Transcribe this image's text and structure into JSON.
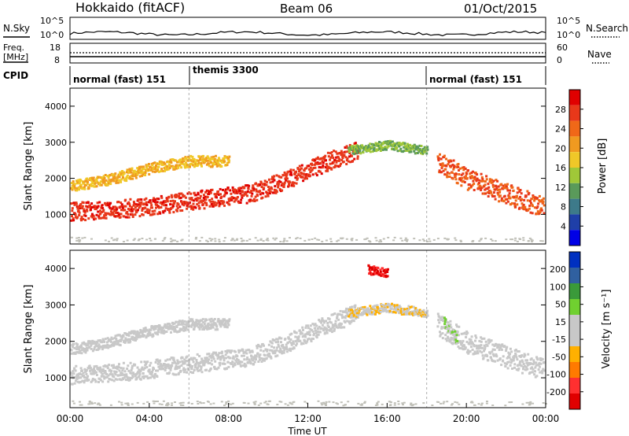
{
  "header": {
    "station": "Hokkaido (fitACF)",
    "beam": "Beam 06",
    "date": "01/Oct/2015"
  },
  "noise_panel": {
    "left_label": "N.Sky",
    "right_label": "N.Search",
    "ticks_left": [
      "10^5",
      "10^0"
    ],
    "ticks_right": [
      "10^5",
      "10^0"
    ]
  },
  "freq_panel": {
    "left_label_line1": "Freq.",
    "left_label_line2": "[MHz]",
    "right_label": "Nave",
    "ticks_left": [
      "18",
      "8"
    ],
    "ticks_right": [
      "60",
      "0"
    ]
  },
  "cpid_panel": {
    "label": "CPID",
    "segments": [
      {
        "label": "normal (fast) 151",
        "start_hour": 0,
        "end_hour": 6
      },
      {
        "label": "themis 3300",
        "start_hour": 6,
        "end_hour": 18
      },
      {
        "label": "normal (fast) 151",
        "start_hour": 18,
        "end_hour": 24
      }
    ]
  },
  "colors": {
    "power": [
      "#0000e6",
      "#1f3fa8",
      "#3d7a8a",
      "#5a9a5a",
      "#a0c838",
      "#f0c828",
      "#f09a20",
      "#f06818",
      "#e8381a",
      "#e00000"
    ],
    "velocity": [
      "#e00000",
      "#ff3030",
      "#ff7a00",
      "#ffb000",
      "#c8c8c8",
      "#c8c8c8",
      "#70d030",
      "#3a9a3a",
      "#3060a0",
      "#0030c0"
    ],
    "ground_scatter": "#c0c0b8"
  },
  "chart_data": [
    {
      "type": "heatmap",
      "title": "",
      "xlabel": "Time UT",
      "ylabel": "Slant Range [km]",
      "x_ticks": [
        "00:00",
        "04:00",
        "08:00",
        "12:00",
        "16:00",
        "20:00",
        "00:00"
      ],
      "x_range_hours": [
        0,
        24
      ],
      "ylim": [
        180,
        4500
      ],
      "y_ticks": [
        1000,
        2000,
        3000,
        4000
      ],
      "colorbar": {
        "label": "Power [dB]",
        "ticks": [
          "4",
          "8",
          "12",
          "16",
          "20",
          "24",
          "28"
        ],
        "range": [
          0,
          30
        ]
      },
      "bands": [
        {
          "name": "main",
          "hours": [
            0,
            3,
            6,
            9,
            11,
            13,
            14.5
          ],
          "range_km": [
            1100,
            1200,
            1400,
            1600,
            2000,
            2500,
            2800
          ],
          "width_km": 500,
          "value_db": 26
        },
        {
          "name": "upper",
          "hours": [
            0,
            2,
            4,
            6,
            8
          ],
          "range_km": [
            1800,
            2000,
            2300,
            2500,
            2500
          ],
          "width_km": 300,
          "value_db": 18
        },
        {
          "name": "high",
          "hours": [
            14,
            16,
            18
          ],
          "range_km": [
            2800,
            2950,
            2800
          ],
          "width_km": 250,
          "value_db": 12
        },
        {
          "name": "evening",
          "hours": [
            18.5,
            20,
            22,
            24
          ],
          "range_km": [
            2500,
            2000,
            1600,
            1200
          ],
          "width_km": 600,
          "value_db": 24
        }
      ]
    },
    {
      "type": "heatmap",
      "title": "",
      "xlabel": "Time UT",
      "ylabel": "Slant Range [km]",
      "x_ticks": [
        "00:00",
        "04:00",
        "08:00",
        "12:00",
        "16:00",
        "20:00",
        "00:00"
      ],
      "x_range_hours": [
        0,
        24
      ],
      "ylim": [
        180,
        4500
      ],
      "y_ticks": [
        1000,
        2000,
        3000,
        4000
      ],
      "colorbar": {
        "label": "Velocity [m s⁻¹]",
        "ticks": [
          "200",
          "100",
          "50",
          "15",
          "-15",
          "-50",
          "-100",
          "-200"
        ],
        "range": [
          -250,
          250
        ]
      },
      "bands": [
        {
          "name": "main",
          "hours": [
            0,
            3,
            6,
            9,
            11,
            13,
            14.5
          ],
          "range_km": [
            1100,
            1200,
            1400,
            1600,
            2000,
            2500,
            2800
          ],
          "width_km": 500,
          "value_ms": 0
        },
        {
          "name": "upper",
          "hours": [
            0,
            2,
            4,
            6,
            8
          ],
          "range_km": [
            1800,
            2000,
            2300,
            2500,
            2500
          ],
          "width_km": 300,
          "value_ms": 0
        },
        {
          "name": "high",
          "hours": [
            14,
            16,
            18
          ],
          "range_km": [
            2800,
            2950,
            2800
          ],
          "width_km": 250,
          "value_ms": -40
        },
        {
          "name": "evening",
          "hours": [
            18.5,
            20,
            22,
            24
          ],
          "range_km": [
            2500,
            2000,
            1600,
            1200
          ],
          "width_km": 600,
          "value_ms": 0
        },
        {
          "name": "eve-green",
          "hours": [
            18.8,
            19.5
          ],
          "range_km": [
            2600,
            2100
          ],
          "width_km": 300,
          "value_ms": 40
        },
        {
          "name": "red-top",
          "hours": [
            15,
            16
          ],
          "range_km": [
            4000,
            3900
          ],
          "width_km": 250,
          "value_ms": -210
        }
      ]
    }
  ]
}
